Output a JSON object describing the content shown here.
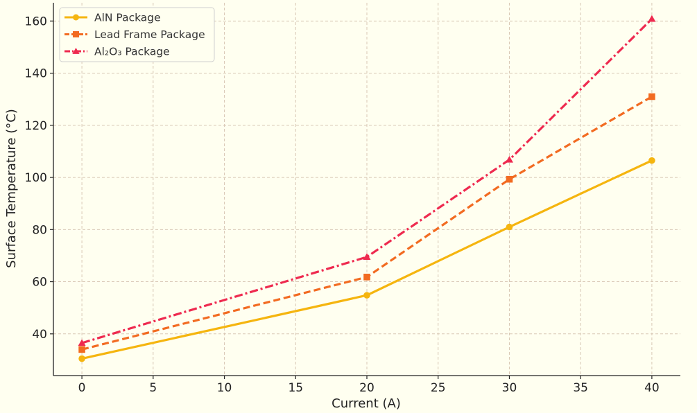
{
  "chart_data": {
    "type": "line",
    "xlabel": "Current (A)",
    "ylabel": "Surface Temperature (°C)",
    "xlim": [
      -2,
      42
    ],
    "ylim": [
      24,
      167
    ],
    "x_ticks": [
      0,
      5,
      10,
      15,
      20,
      25,
      30,
      35,
      40
    ],
    "y_ticks": [
      40,
      60,
      80,
      100,
      120,
      140,
      160
    ],
    "grid": true,
    "legend_position": "top-left",
    "x": [
      0,
      20,
      30,
      40
    ],
    "series": [
      {
        "name": "AlN Package",
        "values": [
          30.5,
          54.8,
          81.0,
          106.5
        ],
        "color": "#f5b50f",
        "line_style": "solid",
        "marker": "circle"
      },
      {
        "name": "Lead Frame Package",
        "values": [
          34.0,
          61.8,
          99.3,
          131.0
        ],
        "color": "#f26b21",
        "line_style": "dashed",
        "marker": "square"
      },
      {
        "name": "Al₂O₃ Package",
        "values": [
          36.5,
          69.5,
          106.8,
          160.8
        ],
        "color": "#ee2a4f",
        "line_style": "dashdot",
        "marker": "triangle"
      }
    ]
  }
}
